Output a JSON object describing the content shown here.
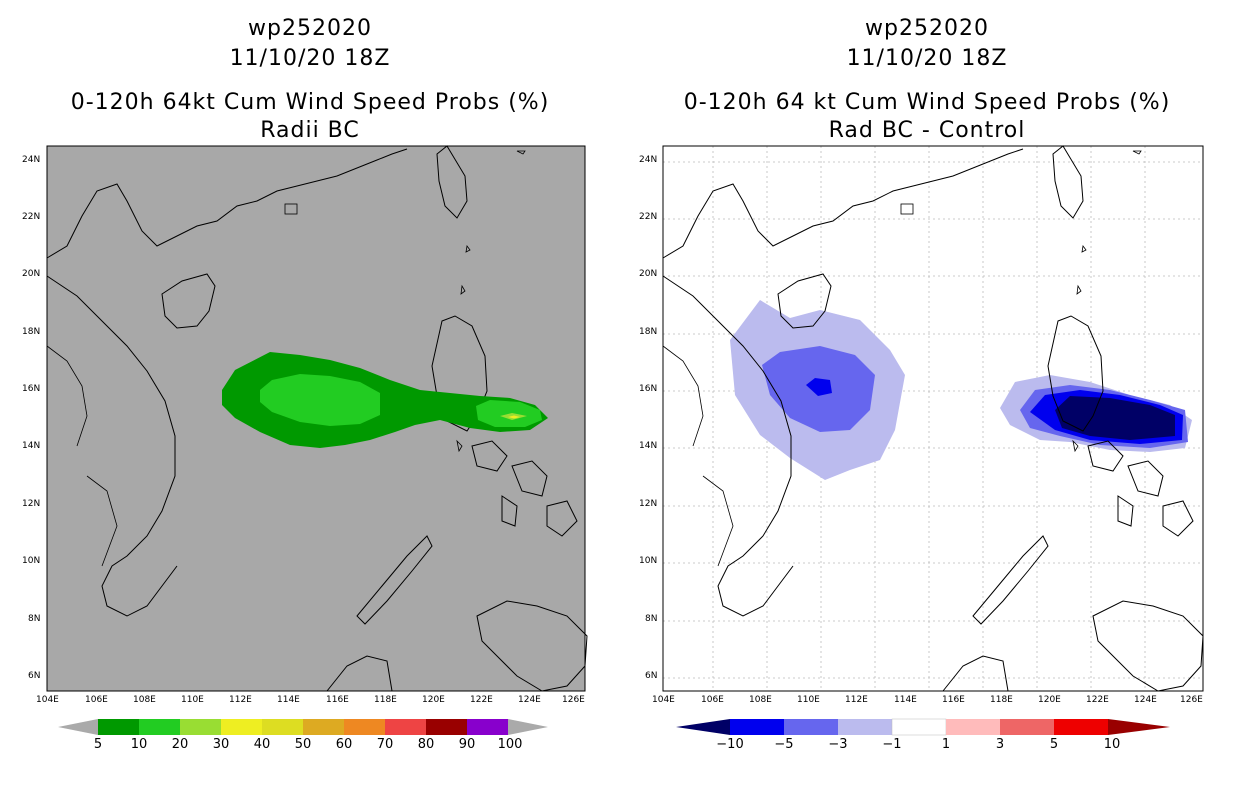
{
  "left_panel": {
    "storm_id": "wp252020",
    "datetime": "11/10/20 18Z",
    "title": "0-120h 64kt Cum Wind Speed Probs (%)",
    "subtitle": "Radii BC",
    "lat_labels": [
      "24N",
      "22N",
      "20N",
      "18N",
      "16N",
      "14N",
      "12N",
      "10N",
      "8N",
      "6N"
    ],
    "lon_labels": [
      "104E",
      "106E",
      "108E",
      "110E",
      "112E",
      "114E",
      "116E",
      "118E",
      "120E",
      "122E",
      "124E",
      "126E"
    ],
    "colorbar": {
      "labels": [
        "5",
        "10",
        "20",
        "30",
        "40",
        "50",
        "60",
        "70",
        "80",
        "90",
        "100"
      ],
      "colors": [
        "#009900",
        "#22cc22",
        "#99dd33",
        "#eeee22",
        "#dddd22",
        "#ddaa22",
        "#ee8822",
        "#ee4444",
        "#990000",
        "#8800cc"
      ]
    }
  },
  "right_panel": {
    "storm_id": "wp252020",
    "datetime": "11/10/20 18Z",
    "title": "0-120h 64 kt Cum Wind Speed Probs (%)",
    "subtitle": "Rad BC - Control",
    "lat_labels": [
      "24N",
      "22N",
      "20N",
      "18N",
      "16N",
      "14N",
      "12N",
      "10N",
      "8N",
      "6N"
    ],
    "lon_labels": [
      "104E",
      "106E",
      "108E",
      "110E",
      "112E",
      "114E",
      "116E",
      "118E",
      "120E",
      "122E",
      "124E",
      "126E"
    ],
    "colorbar": {
      "labels": [
        "−10",
        "−5",
        "−3",
        "−1",
        "1",
        "3",
        "5",
        "10"
      ],
      "colors": [
        "#000066",
        "#0000ee",
        "#6666ee",
        "#bbbbee",
        "#ffffff",
        "#ffbbbb",
        "#ee6666",
        "#ee0000",
        "#990000"
      ]
    }
  },
  "colors": {
    "land_gray": "#a8a8a8",
    "green_dark": "#009900",
    "green_light": "#22cc22",
    "yellow_green": "#99dd33",
    "yellow": "#eeee22"
  }
}
